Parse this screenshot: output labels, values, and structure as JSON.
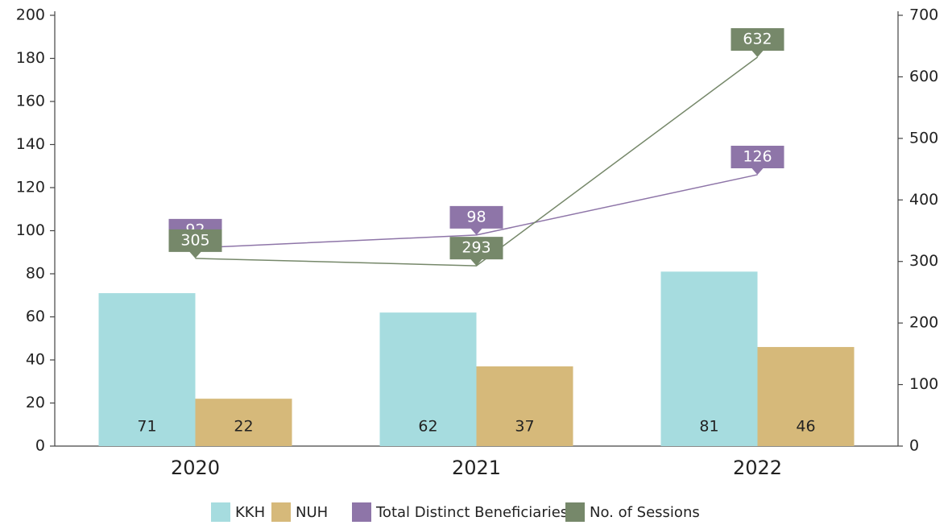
{
  "chart_data": {
    "type": "bar_line",
    "categories": [
      "2020",
      "2021",
      "2022"
    ],
    "series": [
      {
        "name": "KKH",
        "color": "#a6dcdf",
        "type": "bar",
        "values": [
          71,
          62,
          81
        ]
      },
      {
        "name": "NUH",
        "color": "#d6b97a",
        "type": "bar",
        "values": [
          22,
          37,
          46
        ]
      },
      {
        "name": "Total Distinct Beneficiaries",
        "color": "#8e75a8",
        "type": "line",
        "values": [
          92,
          98,
          126
        ]
      },
      {
        "name": "No. of Sessions",
        "color": "#76886a",
        "type": "line",
        "axis": "y2",
        "values": [
          305,
          293,
          632
        ]
      }
    ],
    "ylim": [
      0,
      200
    ],
    "yticks": [
      0,
      20,
      40,
      60,
      80,
      100,
      120,
      140,
      160,
      180,
      200
    ],
    "y2lim": [
      0,
      700
    ],
    "y2ticks": [
      0,
      100,
      200,
      300,
      400,
      500,
      600,
      700
    ],
    "legend": "bottom"
  }
}
